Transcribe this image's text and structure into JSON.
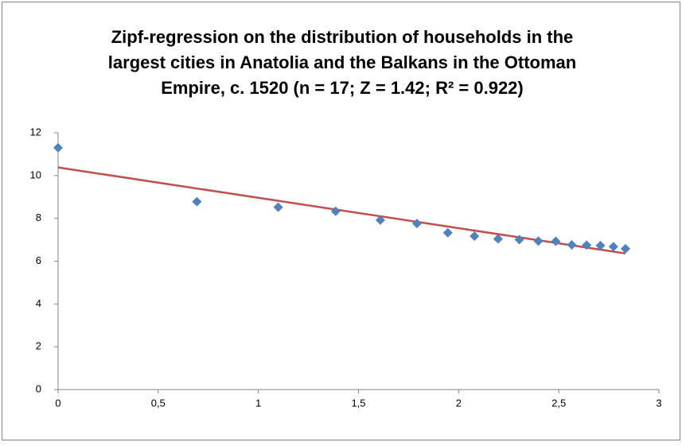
{
  "chart_data": {
    "type": "scatter",
    "title": [
      "Zipf-regression on the distribution of households in the",
      "largest cities in Anatolia and the Balkans in the Ottoman",
      "Empire, c. 1520 (n = 17; Z = 1.42; R² = 0.922)"
    ],
    "series": [
      {
        "color": "#4f81bd",
        "x": [
          0,
          0.693,
          1.099,
          1.386,
          1.609,
          1.792,
          1.946,
          2.079,
          2.197,
          2.303,
          2.398,
          2.485,
          2.565,
          2.639,
          2.708,
          2.773,
          2.833
        ],
        "values": [
          11.3,
          8.78,
          8.52,
          8.33,
          7.92,
          7.76,
          7.33,
          7.17,
          7.04,
          7.01,
          6.94,
          6.93,
          6.76,
          6.75,
          6.73,
          6.68,
          6.58
        ]
      }
    ],
    "trendline": {
      "color": "#c0504d",
      "x": [
        0,
        2.833
      ],
      "values": [
        10.38,
        6.36
      ]
    },
    "xlim": [
      0,
      3
    ],
    "xticks": [
      0,
      {
        "value": 0.5,
        "label": "0,5"
      },
      1,
      {
        "value": 1.5,
        "label": "1,5"
      },
      2,
      {
        "value": 2.5,
        "label": "2,5"
      },
      3
    ],
    "ylim": [
      0,
      12
    ],
    "yticks": [
      0,
      2,
      4,
      6,
      8,
      10,
      12
    ],
    "grid": false
  }
}
